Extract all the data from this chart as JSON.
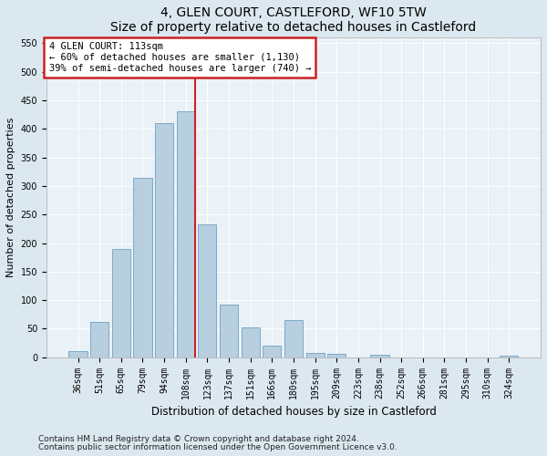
{
  "title": "4, GLEN COURT, CASTLEFORD, WF10 5TW",
  "subtitle": "Size of property relative to detached houses in Castleford",
  "xlabel": "Distribution of detached houses by size in Castleford",
  "ylabel": "Number of detached properties",
  "categories": [
    "36sqm",
    "51sqm",
    "65sqm",
    "79sqm",
    "94sqm",
    "108sqm",
    "123sqm",
    "137sqm",
    "151sqm",
    "166sqm",
    "180sqm",
    "195sqm",
    "209sqm",
    "223sqm",
    "238sqm",
    "252sqm",
    "266sqm",
    "281sqm",
    "295sqm",
    "310sqm",
    "324sqm"
  ],
  "values": [
    10,
    62,
    190,
    315,
    410,
    430,
    233,
    93,
    52,
    20,
    65,
    8,
    6,
    0,
    4,
    0,
    0,
    0,
    0,
    0,
    2
  ],
  "bar_color": "#b8cfe0",
  "bar_edge_color": "#7aaac8",
  "vline_x_index": 5,
  "vline_color": "#cc2222",
  "annotation_title": "4 GLEN COURT: 113sqm",
  "annotation_line1": "← 60% of detached houses are smaller (1,130)",
  "annotation_line2": "39% of semi-detached houses are larger (740) →",
  "annotation_box_facecolor": "#ffffff",
  "annotation_box_edgecolor": "#cc2222",
  "ylim": [
    0,
    560
  ],
  "yticks": [
    0,
    50,
    100,
    150,
    200,
    250,
    300,
    350,
    400,
    450,
    500,
    550
  ],
  "footnote1": "Contains HM Land Registry data © Crown copyright and database right 2024.",
  "footnote2": "Contains public sector information licensed under the Open Government Licence v3.0.",
  "fig_facecolor": "#dce8f0",
  "plot_facecolor": "#eaf1f7",
  "title_fontsize": 10,
  "xlabel_fontsize": 8.5,
  "ylabel_fontsize": 8,
  "tick_fontsize": 7,
  "annotation_fontsize": 7.5,
  "footnote_fontsize": 6.5
}
